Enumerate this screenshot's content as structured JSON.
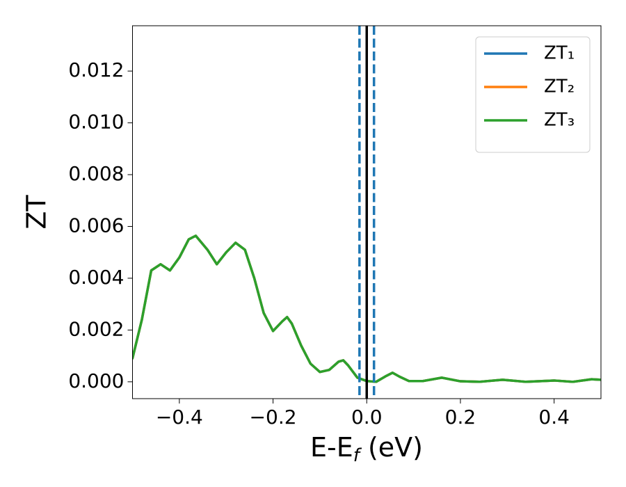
{
  "chart_data": {
    "type": "line",
    "xlabel": [
      "E-E",
      "f",
      " (eV)"
    ],
    "ylabel": "ZT",
    "xlim": [
      -0.5,
      0.5
    ],
    "ylim": [
      -0.00065,
      0.01375
    ],
    "xticks": [
      {
        "value": -0.4,
        "label": "−0.4"
      },
      {
        "value": -0.2,
        "label": "−0.2"
      },
      {
        "value": 0,
        "label": "0.0"
      },
      0.2,
      0.4
    ],
    "yticks": [
      {
        "value": 0,
        "label": "0.000"
      },
      {
        "value": 0.002,
        "label": "0.002"
      },
      {
        "value": 0.004,
        "label": "0.004"
      },
      {
        "value": 0.006,
        "label": "0.006"
      },
      {
        "value": 0.008,
        "label": "0.008"
      },
      {
        "value": 0.01,
        "label": "0.010"
      },
      {
        "value": 0.012,
        "label": "0.012"
      }
    ],
    "grid": false,
    "legend": "upper right",
    "x": [
      -0.5,
      -0.48,
      -0.46,
      -0.44,
      -0.42,
      -0.4,
      -0.38,
      -0.365,
      -0.34,
      -0.32,
      -0.3,
      -0.28,
      -0.26,
      -0.24,
      -0.22,
      -0.2,
      -0.18,
      -0.17,
      -0.16,
      -0.14,
      -0.12,
      -0.1,
      -0.08,
      -0.06,
      -0.05,
      -0.04,
      -0.02,
      0,
      0.02,
      0.04,
      0.055,
      0.07,
      0.09,
      0.12,
      0.16,
      0.2,
      0.24,
      0.29,
      0.34,
      0.4,
      0.44,
      0.48,
      0.5
    ],
    "series": [
      {
        "name": "ZT₁",
        "color": "#1f77b4",
        "values": [
          0.00091,
          0.0024,
          0.0043,
          0.00454,
          0.0043,
          0.0048,
          0.0055,
          0.00564,
          0.0051,
          0.00454,
          0.005,
          0.00537,
          0.0051,
          0.004,
          0.00266,
          0.00196,
          0.00234,
          0.0025,
          0.00225,
          0.0014,
          0.0007,
          0.00038,
          0.00046,
          0.00078,
          0.00083,
          0.00064,
          0.00016,
          3e-05,
          0,
          0.00021,
          0.00035,
          0.0002,
          3e-05,
          3e-05,
          0.00016,
          2e-05,
          0,
          8e-05,
          0,
          5e-05,
          0,
          0.0001,
          8e-05
        ]
      },
      {
        "name": "ZT₂",
        "color": "#ff7f0e",
        "values": [
          0.00091,
          0.0024,
          0.0043,
          0.00454,
          0.0043,
          0.0048,
          0.0055,
          0.00564,
          0.0051,
          0.00454,
          0.005,
          0.00537,
          0.0051,
          0.004,
          0.00266,
          0.00196,
          0.00234,
          0.0025,
          0.00225,
          0.0014,
          0.0007,
          0.00038,
          0.00046,
          0.00078,
          0.00083,
          0.00064,
          0.00016,
          3e-05,
          0,
          0.00021,
          0.00035,
          0.0002,
          3e-05,
          3e-05,
          0.00016,
          2e-05,
          0,
          8e-05,
          0,
          5e-05,
          0,
          0.0001,
          8e-05
        ]
      },
      {
        "name": "ZT₃",
        "color": "#2ca02c",
        "values": [
          0.00091,
          0.0024,
          0.0043,
          0.00454,
          0.0043,
          0.0048,
          0.0055,
          0.00564,
          0.0051,
          0.00454,
          0.005,
          0.00537,
          0.0051,
          0.004,
          0.00266,
          0.00196,
          0.00234,
          0.0025,
          0.00225,
          0.0014,
          0.0007,
          0.00038,
          0.00046,
          0.00078,
          0.00083,
          0.00064,
          0.00016,
          3e-05,
          0,
          0.00021,
          0.00035,
          0.0002,
          3e-05,
          3e-05,
          0.00016,
          2e-05,
          0,
          8e-05,
          0,
          5e-05,
          0,
          0.0001,
          8e-05
        ]
      }
    ],
    "vlines": [
      {
        "x": 0,
        "color": "#000000",
        "style": "solid"
      },
      {
        "x": -0.0155,
        "color": "#1f77b4",
        "style": "dashed"
      },
      {
        "x": 0.0155,
        "color": "#1f77b4",
        "style": "dashed"
      }
    ]
  }
}
